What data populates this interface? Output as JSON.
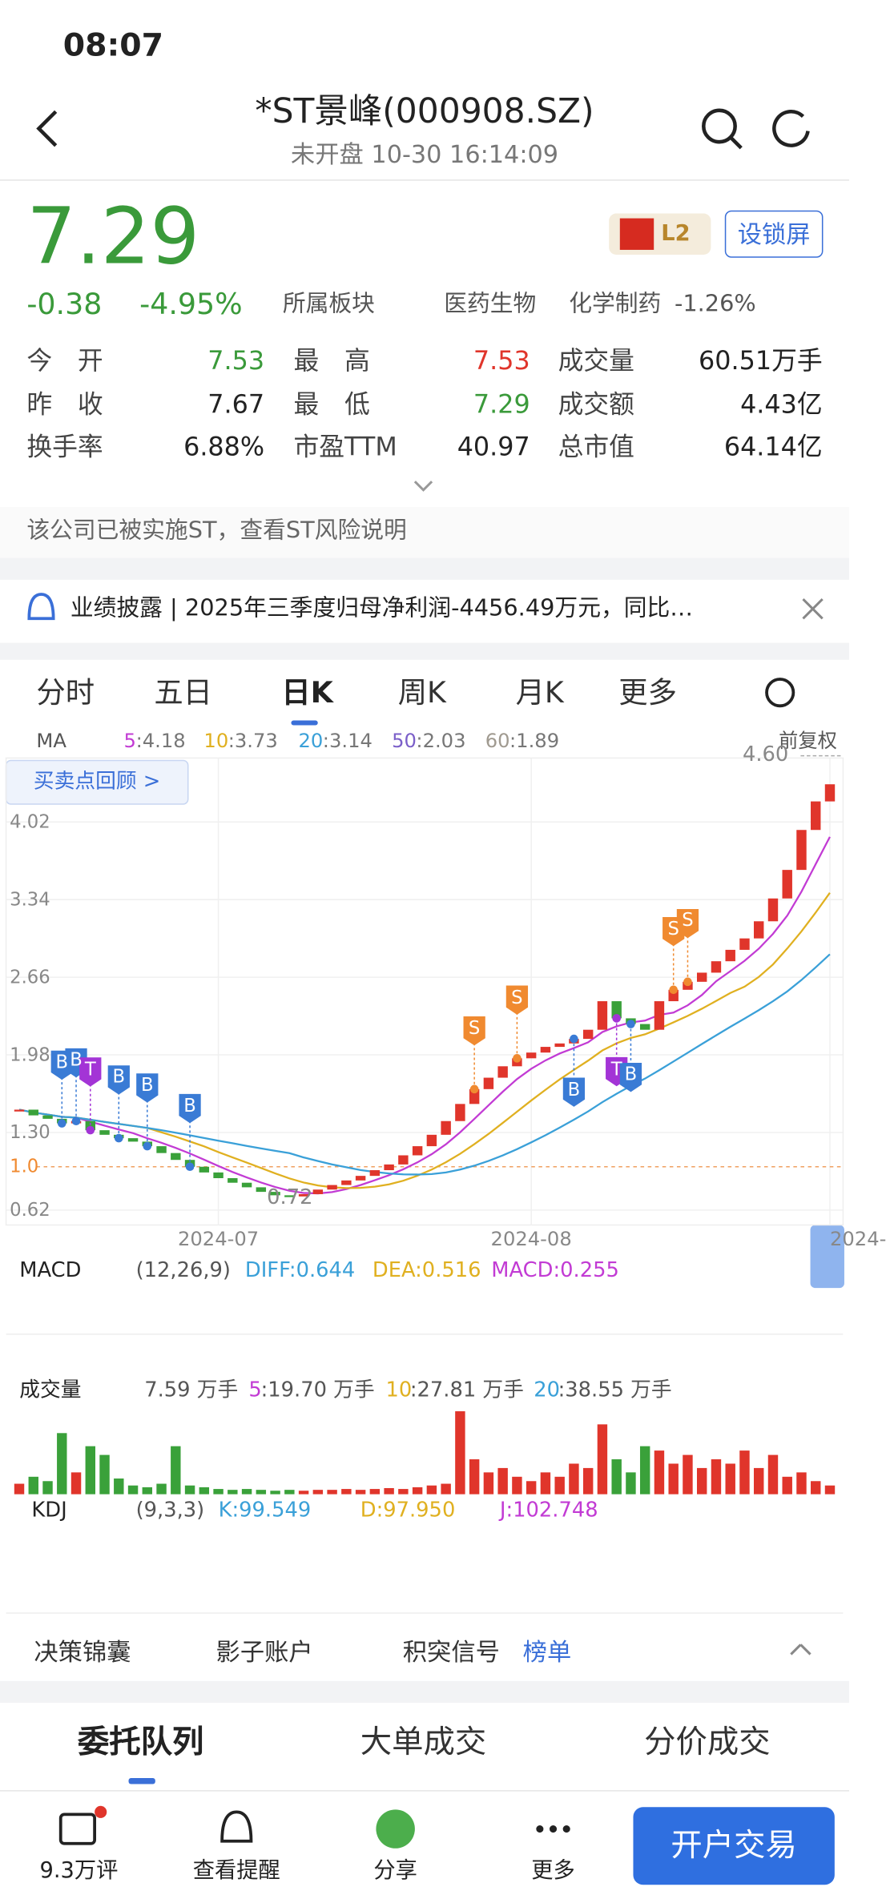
{
  "status": {
    "time": "08:07"
  },
  "header": {
    "title": "*ST景峰(000908.SZ)",
    "subtitle": "未开盘 10-30 16:14:09"
  },
  "quote": {
    "price": "7.29",
    "change": "-0.38",
    "change_pct": "-4.95%",
    "sector_label": "所属板块",
    "sector": "医药生物",
    "industry": "化学制药",
    "industry_pct": "-1.26%",
    "badge": "L2",
    "lock_button": "设锁屏"
  },
  "stats": [
    [
      "今　开",
      "7.53"
    ],
    [
      "最　高",
      "7.53"
    ],
    [
      "成交量",
      "60.51万手"
    ],
    [
      "昨　收",
      "7.67"
    ],
    [
      "最　低",
      "7.29"
    ],
    [
      "成交额",
      "4.43亿"
    ],
    [
      "换手率",
      "6.88%"
    ],
    [
      "市盈TTM",
      "40.97"
    ],
    [
      "总市值",
      "64.14亿"
    ]
  ],
  "notice": "该公司已被实施ST，查看ST风险说明",
  "news": "业绩披露 | 2025年三季度归母净利润-4456.49万元，同比…",
  "tabs": [
    "分时",
    "五日",
    "日K",
    "周K",
    "月K",
    "更多"
  ],
  "chart": {
    "type": "candlestick",
    "ma_label": "MA",
    "ma": [
      {
        "name": "5",
        "value": ":4.18",
        "color": "#c23bd4"
      },
      {
        "name": "10",
        "value": ":3.73",
        "color": "#e0b020"
      },
      {
        "name": "20",
        "value": ":3.14",
        "color": "#3aa0d8"
      },
      {
        "name": "50",
        "value": ":2.03",
        "color": "#7b5fc9"
      },
      {
        "name": "60",
        "value": ":1.89",
        "color": "#a09a90"
      }
    ],
    "adjust": "前复权",
    "review_button": "买卖点回顾 >",
    "ylim": [
      0.49,
      4.58
    ],
    "yticks": [
      4.02,
      3.34,
      2.66,
      1.98,
      {
        "value": 1.3,
        "label": "1.30"
      },
      0.62
    ],
    "ref_line": {
      "value": 1.0,
      "label": "1.0"
    },
    "max_label": {
      "value": 4.6,
      "label": "4.60"
    },
    "min_label": 0.72,
    "categories": [
      null,
      null,
      null,
      null,
      null,
      null,
      null,
      null,
      null,
      null,
      null,
      null,
      null,
      null,
      "2024-07",
      null,
      null,
      null,
      null,
      null,
      null,
      null,
      null,
      null,
      null,
      null,
      null,
      null,
      null,
      null,
      null,
      null,
      null,
      null,
      null,
      null,
      "2024-08",
      null,
      null,
      null,
      null,
      null,
      null,
      null,
      null,
      null,
      null,
      null,
      null,
      null,
      null,
      null,
      null,
      null,
      null,
      null,
      null,
      "2024-"
    ],
    "closes": [
      1.5,
      1.45,
      1.42,
      1.38,
      1.4,
      1.32,
      1.28,
      1.25,
      1.22,
      1.18,
      1.12,
      1.06,
      1.0,
      0.95,
      0.9,
      0.86,
      0.82,
      0.78,
      0.75,
      0.74,
      0.76,
      0.8,
      0.84,
      0.88,
      0.92,
      0.97,
      1.02,
      1.1,
      1.18,
      1.28,
      1.4,
      1.55,
      1.68,
      1.78,
      1.88,
      1.95,
      2.0,
      2.05,
      2.08,
      2.12,
      2.2,
      2.45,
      2.3,
      2.25,
      2.2,
      2.45,
      2.55,
      2.62,
      2.7,
      2.8,
      2.9,
      3.0,
      3.15,
      3.35,
      3.6,
      3.95,
      4.2,
      4.35
    ],
    "up_color": "#e0352b",
    "down_color": "#3aa13a",
    "signals": [
      {
        "label": "B",
        "index": 3
      },
      {
        "label": "B",
        "index": 4
      },
      {
        "label": "T",
        "index": 5
      },
      {
        "label": "B",
        "index": 7
      },
      {
        "label": "B",
        "index": 9
      },
      {
        "label": "B",
        "index": 12
      },
      {
        "label": "S",
        "index": 32
      },
      {
        "label": "S",
        "index": 35
      },
      {
        "label": "B",
        "index": 39
      },
      {
        "label": "T",
        "index": 42
      },
      {
        "label": "B",
        "index": 43
      },
      {
        "label": "S",
        "index": 46
      },
      {
        "label": "S",
        "index": 47
      }
    ],
    "signal_colors": {
      "B": "#3a7bd5",
      "T": "#a334d6",
      "S": "#f08a30"
    }
  },
  "macd": {
    "label": "MACD",
    "params": "(12,26,9)",
    "diff": "DIFF:0.644",
    "dea": "DEA:0.516",
    "macd": "MACD:0.255"
  },
  "volume": {
    "label": "成交量",
    "current": "7.59 万手",
    "ma": [
      {
        "name": "5",
        "value": ":19.70 万手",
        "color": "#c23bd4"
      },
      {
        "name": "10",
        "value": ":27.81 万手",
        "color": "#e0b020"
      },
      {
        "name": "20",
        "value": ":38.55 万手",
        "color": "#3aa0d8"
      }
    ],
    "vlim": [
      0,
      100
    ],
    "values": [
      12,
      20,
      15,
      70,
      25,
      55,
      45,
      18,
      10,
      8,
      12,
      55,
      10,
      8,
      6,
      5,
      6,
      5,
      4,
      5,
      4,
      5,
      5,
      6,
      5,
      6,
      7,
      6,
      8,
      10,
      12,
      95,
      40,
      25,
      30,
      20,
      15,
      25,
      20,
      35,
      30,
      80,
      40,
      25,
      55,
      50,
      35,
      45,
      30,
      40,
      35,
      50,
      30,
      45,
      20,
      25,
      15,
      10
    ]
  },
  "kdj": {
    "label": "KDJ",
    "params": "(9,3,3)",
    "k": "K:99.549",
    "d": "D:97.950",
    "j": "J:102.748"
  },
  "tools": [
    "决策锦囊",
    "影子账户",
    "积突信号",
    "榜单"
  ],
  "bottom_tabs": [
    "委托队列",
    "大单成交",
    "分价成交"
  ],
  "nav": [
    "9.3万评",
    "查看提醒",
    "分享",
    "更多"
  ],
  "trade_button": "开户交易"
}
